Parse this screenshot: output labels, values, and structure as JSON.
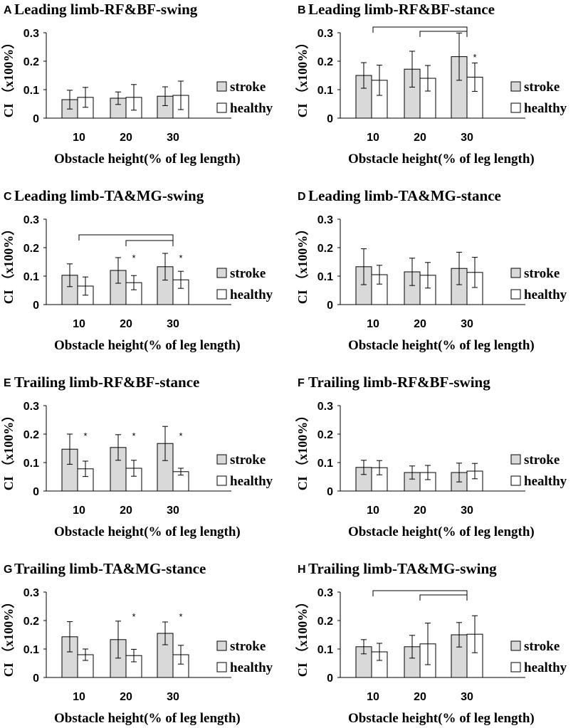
{
  "figure": {
    "legend": {
      "stroke": "stroke",
      "healthy": "healthy"
    },
    "colors": {
      "stroke": "#d9d9d9",
      "healthy": "#ffffff",
      "axis": "#000000"
    },
    "significance_mark": "*"
  },
  "chart_data": [
    {
      "panel": "A",
      "type": "bar",
      "title": "Leading limb-RF&BF-swing",
      "categories": [
        "10",
        "20",
        "30"
      ],
      "xlabel": "Obstacle height(% of leg length)",
      "ylabel": "CI （x100%）",
      "ylim": [
        0,
        0.3
      ],
      "yticks": [
        "0",
        "0.1",
        "0.2",
        "0.3"
      ],
      "series": [
        {
          "name": "stroke",
          "values": [
            0.065,
            0.07,
            0.077
          ],
          "errors": [
            0.033,
            0.022,
            0.033
          ]
        },
        {
          "name": "healthy",
          "values": [
            0.073,
            0.073,
            0.08
          ],
          "errors": [
            0.035,
            0.045,
            0.05
          ]
        }
      ],
      "stars": [],
      "brackets": []
    },
    {
      "panel": "B",
      "type": "bar",
      "title": "Leading limb-RF&BF-stance",
      "categories": [
        "10",
        "20",
        "30"
      ],
      "xlabel": "Obstacle height(% of leg length)",
      "ylabel": "CI （x100%）",
      "ylim": [
        0,
        0.3
      ],
      "yticks": [
        "0",
        "0.1",
        "0.2",
        "0.3"
      ],
      "series": [
        {
          "name": "stroke",
          "values": [
            0.15,
            0.172,
            0.216
          ],
          "errors": [
            0.045,
            0.063,
            0.083
          ]
        },
        {
          "name": "healthy",
          "values": [
            0.133,
            0.14,
            0.144
          ],
          "errors": [
            0.053,
            0.045,
            0.05
          ]
        }
      ],
      "stars": [
        {
          "category": 2,
          "at": 0.215
        }
      ],
      "brackets": [
        {
          "from": 0,
          "to": 2,
          "level": 0.32
        },
        {
          "from": 1,
          "to": 2,
          "level": 0.305
        }
      ]
    },
    {
      "panel": "C",
      "type": "bar",
      "title": "Leading limb-TA&MG-swing",
      "categories": [
        "10",
        "20",
        "30"
      ],
      "xlabel": "Obstacle height(% of leg length)",
      "ylabel": "CI （x100%）",
      "ylim": [
        0,
        0.3
      ],
      "yticks": [
        "0",
        "0.1",
        "0.2",
        "0.3"
      ],
      "series": [
        {
          "name": "stroke",
          "values": [
            0.103,
            0.12,
            0.133
          ],
          "errors": [
            0.04,
            0.045,
            0.047
          ]
        },
        {
          "name": "healthy",
          "values": [
            0.065,
            0.077,
            0.087
          ],
          "errors": [
            0.032,
            0.025,
            0.03
          ]
        }
      ],
      "stars": [
        {
          "category": 1,
          "at": 0.165
        },
        {
          "category": 2,
          "at": 0.165
        }
      ],
      "brackets": [
        {
          "from": 0,
          "to": 2,
          "level": 0.245
        },
        {
          "from": 1,
          "to": 2,
          "level": 0.225
        }
      ]
    },
    {
      "panel": "D",
      "type": "bar",
      "title": "Leading limb-TA&MG-stance",
      "categories": [
        "10",
        "20",
        "30"
      ],
      "xlabel": "Obstacle height(% of leg length)",
      "ylabel": "CI （x100%）",
      "ylim": [
        0,
        0.3
      ],
      "yticks": [
        "0",
        "0.1",
        "0.2",
        "0.3"
      ],
      "series": [
        {
          "name": "stroke",
          "values": [
            0.133,
            0.115,
            0.127
          ],
          "errors": [
            0.063,
            0.048,
            0.057
          ]
        },
        {
          "name": "healthy",
          "values": [
            0.105,
            0.103,
            0.113
          ],
          "errors": [
            0.033,
            0.045,
            0.053
          ]
        }
      ],
      "stars": [],
      "brackets": []
    },
    {
      "panel": "E",
      "type": "bar",
      "title": "Trailing limb-RF&BF-stance",
      "categories": [
        "10",
        "20",
        "30"
      ],
      "xlabel": "Obstacle height(% of leg length)",
      "ylabel": "CI （x100%）",
      "ylim": [
        0,
        0.3
      ],
      "yticks": [
        "0",
        "0.1",
        "0.2",
        "0.3"
      ],
      "series": [
        {
          "name": "stroke",
          "values": [
            0.147,
            0.153,
            0.167
          ],
          "errors": [
            0.053,
            0.045,
            0.06
          ]
        },
        {
          "name": "healthy",
          "values": [
            0.078,
            0.08,
            0.068
          ],
          "errors": [
            0.027,
            0.028,
            0.012
          ]
        }
      ],
      "stars": [
        {
          "category": 0,
          "at": 0.195
        },
        {
          "category": 1,
          "at": 0.195
        },
        {
          "category": 2,
          "at": 0.195
        }
      ],
      "brackets": []
    },
    {
      "panel": "F",
      "type": "bar",
      "title": "Trailing limb-RF&BF-swing",
      "categories": [
        "10",
        "20",
        "30"
      ],
      "xlabel": "Obstacle height(% of leg length)",
      "ylabel": "CI （x100%）",
      "ylim": [
        0,
        0.3
      ],
      "yticks": [
        "0",
        "0.1",
        "0.2",
        "0.3"
      ],
      "series": [
        {
          "name": "stroke",
          "values": [
            0.083,
            0.065,
            0.065
          ],
          "errors": [
            0.025,
            0.023,
            0.033
          ]
        },
        {
          "name": "healthy",
          "values": [
            0.082,
            0.065,
            0.07
          ],
          "errors": [
            0.025,
            0.025,
            0.027
          ]
        }
      ],
      "stars": [],
      "brackets": []
    },
    {
      "panel": "G",
      "type": "bar",
      "title": "Trailing limb-TA&MG-stance",
      "categories": [
        "10",
        "20",
        "30"
      ],
      "xlabel": "Obstacle height(% of leg length)",
      "ylabel": "CI （x100%）",
      "ylim": [
        0,
        0.3
      ],
      "yticks": [
        "0",
        "0.1",
        "0.2",
        "0.3"
      ],
      "series": [
        {
          "name": "stroke",
          "values": [
            0.143,
            0.133,
            0.155
          ],
          "errors": [
            0.053,
            0.065,
            0.04
          ]
        },
        {
          "name": "healthy",
          "values": [
            0.08,
            0.077,
            0.08
          ],
          "errors": [
            0.02,
            0.022,
            0.033
          ]
        }
      ],
      "stars": [
        {
          "category": 1,
          "at": 0.215
        },
        {
          "category": 2,
          "at": 0.215
        }
      ],
      "brackets": []
    },
    {
      "panel": "H",
      "type": "bar",
      "title": "Trailing limb-TA&MG-swing",
      "categories": [
        "10",
        "20",
        "30"
      ],
      "xlabel": "Obstacle height(% of leg length)",
      "ylabel": "CI （x100%）",
      "ylim": [
        0,
        0.3
      ],
      "yticks": [
        "0",
        "0.1",
        "0.2",
        "0.3"
      ],
      "series": [
        {
          "name": "stroke",
          "values": [
            0.108,
            0.108,
            0.15
          ],
          "errors": [
            0.025,
            0.04,
            0.043
          ]
        },
        {
          "name": "healthy",
          "values": [
            0.09,
            0.118,
            0.152
          ],
          "errors": [
            0.03,
            0.073,
            0.065
          ]
        }
      ],
      "stars": [],
      "brackets": [
        {
          "from": 0,
          "to": 2,
          "level": 0.305
        },
        {
          "from": 1,
          "to": 2,
          "level": 0.29
        }
      ]
    }
  ]
}
